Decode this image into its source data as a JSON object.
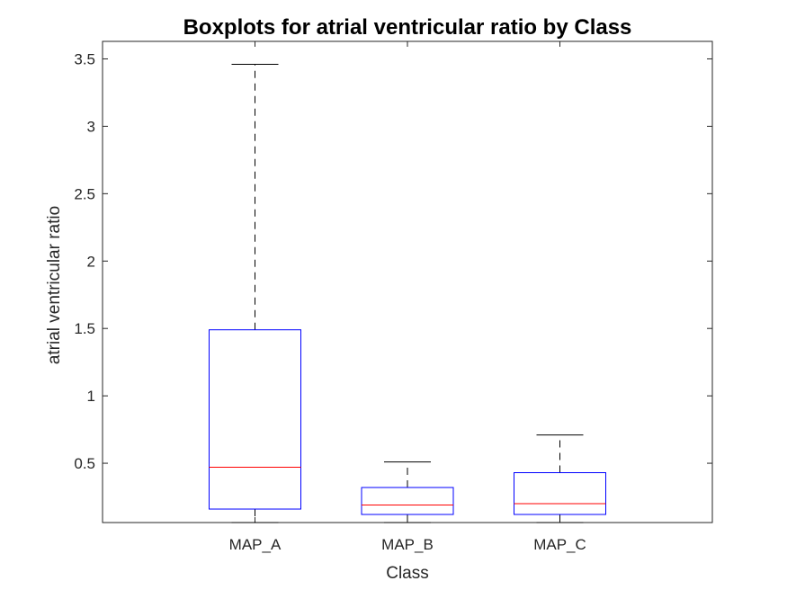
{
  "chart_data": {
    "type": "boxplot",
    "title": "Boxplots for atrial ventricular ratio by Class",
    "xlabel": "Class",
    "ylabel": "atrial ventricular ratio",
    "categories": [
      "MAP_A",
      "MAP_B",
      "MAP_C"
    ],
    "ylim": [
      0.06,
      3.63
    ],
    "yticks": [
      0.5,
      1,
      1.5,
      2,
      2.5,
      3,
      3.5
    ],
    "ytick_labels": [
      "0.5",
      "1",
      "1.5",
      "2",
      "2.5",
      "3",
      "3.5"
    ],
    "boxes": [
      {
        "category": "MAP_A",
        "lower_whisker": 0.06,
        "q1": 0.16,
        "median": 0.47,
        "q3": 1.49,
        "upper_whisker": 3.46
      },
      {
        "category": "MAP_B",
        "lower_whisker": 0.06,
        "q1": 0.12,
        "median": 0.19,
        "q3": 0.32,
        "upper_whisker": 0.51
      },
      {
        "category": "MAP_C",
        "lower_whisker": 0.06,
        "q1": 0.12,
        "median": 0.2,
        "q3": 0.43,
        "upper_whisker": 0.71
      }
    ],
    "box_color": "#0000ff",
    "median_color": "#ff0000",
    "whisker_color": "#000000",
    "grid": false,
    "legend": "none"
  }
}
